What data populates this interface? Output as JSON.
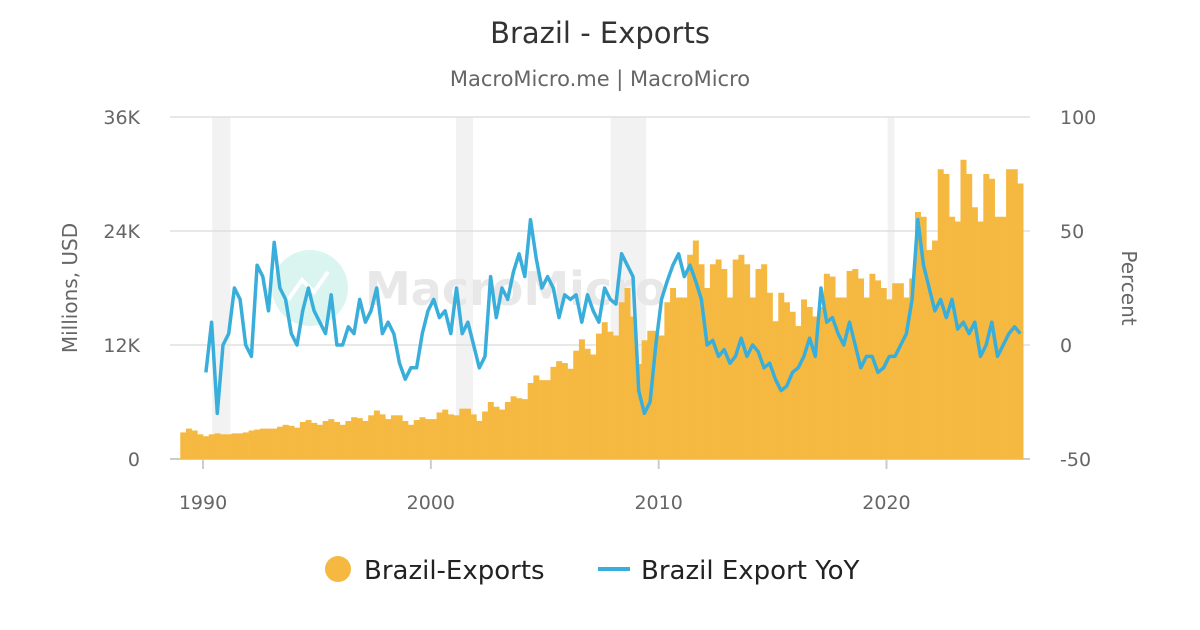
{
  "chart_data": {
    "type": "bar+line",
    "title": "Brazil - Exports",
    "subtitle": "MacroMicro.me | MacroMicro",
    "watermark": "MacroMicro",
    "y_left": {
      "label": "Millions, USD",
      "ticks": [
        "0",
        "12K",
        "24K",
        "36K"
      ],
      "tick_values": [
        0,
        12000,
        24000,
        36000
      ],
      "range": [
        0,
        36000
      ]
    },
    "y_right": {
      "label": "Percent",
      "ticks": [
        "-50",
        "0",
        "50",
        "100"
      ],
      "tick_values": [
        -50,
        0,
        50,
        100
      ],
      "range": [
        -50,
        100
      ]
    },
    "x_axis": {
      "ticks": [
        "1990",
        "2000",
        "2010",
        "2020"
      ],
      "tick_values": [
        1990,
        2000,
        2010,
        2020
      ],
      "range": [
        1988.55,
        2026.3
      ]
    },
    "grid": true,
    "legend_position": "bottom",
    "frequency": "quarterly (approximated from monthly chart)",
    "start_year": 1989,
    "recession_periods": [
      [
        1990.4,
        1991.2
      ],
      [
        2001.1,
        2001.85
      ],
      [
        2007.9,
        2009.45
      ],
      [
        2020.05,
        2020.35
      ]
    ],
    "colors": {
      "exports": "#f5b942",
      "yoy": "#3aaedb",
      "recession": "#f2f2f2"
    },
    "series": [
      {
        "name": "Brazil-Exports",
        "axis": "left",
        "type": "bar",
        "values": [
          2800,
          3200,
          3000,
          2600,
          2400,
          2600,
          2700,
          2600,
          2600,
          2700,
          2700,
          2800,
          3000,
          3100,
          3200,
          3200,
          3200,
          3400,
          3600,
          3500,
          3300,
          3900,
          4100,
          3800,
          3600,
          4000,
          4200,
          3900,
          3600,
          4000,
          4400,
          4300,
          4000,
          4600,
          5100,
          4700,
          4200,
          4600,
          4600,
          4000,
          3600,
          4100,
          4400,
          4200,
          4200,
          4900,
          5200,
          4700,
          4600,
          5300,
          5300,
          4700,
          4000,
          5000,
          6000,
          5500,
          5200,
          6000,
          6600,
          6400,
          6300,
          8000,
          8800,
          8300,
          8300,
          9700,
          10300,
          10100,
          9500,
          11400,
          12600,
          11600,
          11000,
          13200,
          14400,
          13400,
          13000,
          16500,
          18000,
          15000,
          10000,
          12500,
          13500,
          13500,
          13000,
          16500,
          18000,
          17000,
          17000,
          21500,
          23000,
          20500,
          18000,
          20500,
          21000,
          20000,
          17000,
          21000,
          21500,
          20500,
          17000,
          20000,
          20500,
          17500,
          14500,
          17500,
          16500,
          15500,
          14000,
          16800,
          16000,
          15000,
          16000,
          19500,
          19200,
          17000,
          17000,
          19800,
          20000,
          19000,
          17000,
          19500,
          18800,
          18000,
          16800,
          18500,
          18500,
          17000,
          19000,
          26000,
          25500,
          22000,
          23000,
          30500,
          30000,
          25500,
          25000,
          31500,
          30000,
          26500,
          25000,
          30000,
          29500,
          25500,
          25500,
          30500,
          30500,
          29000
        ]
      },
      {
        "name": "Brazil Export YoY",
        "axis": "right",
        "type": "line",
        "values": [
          null,
          null,
          null,
          null,
          -12,
          10,
          -30,
          0,
          5,
          25,
          20,
          0,
          -5,
          35,
          30,
          15,
          45,
          25,
          20,
          5,
          0,
          15,
          25,
          15,
          10,
          5,
          22,
          0,
          0,
          8,
          5,
          20,
          10,
          15,
          25,
          5,
          10,
          5,
          -8,
          -15,
          -10,
          -10,
          5,
          15,
          20,
          12,
          15,
          5,
          25,
          5,
          10,
          0,
          -10,
          -5,
          30,
          12,
          25,
          20,
          32,
          40,
          30,
          55,
          38,
          25,
          30,
          25,
          12,
          22,
          20,
          22,
          10,
          22,
          15,
          10,
          25,
          20,
          18,
          40,
          35,
          30,
          -20,
          -30,
          -25,
          0,
          20,
          28,
          35,
          40,
          30,
          35,
          28,
          20,
          0,
          2,
          -5,
          -2,
          -8,
          -5,
          3,
          -5,
          0,
          -3,
          -10,
          -8,
          -15,
          -20,
          -18,
          -12,
          -10,
          -5,
          3,
          -5,
          25,
          10,
          12,
          5,
          0,
          10,
          0,
          -10,
          -5,
          -5,
          -12,
          -10,
          -5,
          -5,
          0,
          5,
          20,
          55,
          35,
          25,
          15,
          20,
          12,
          20,
          7,
          10,
          5,
          10,
          -5,
          0,
          10,
          -5,
          0,
          5,
          8,
          5
        ]
      }
    ]
  }
}
